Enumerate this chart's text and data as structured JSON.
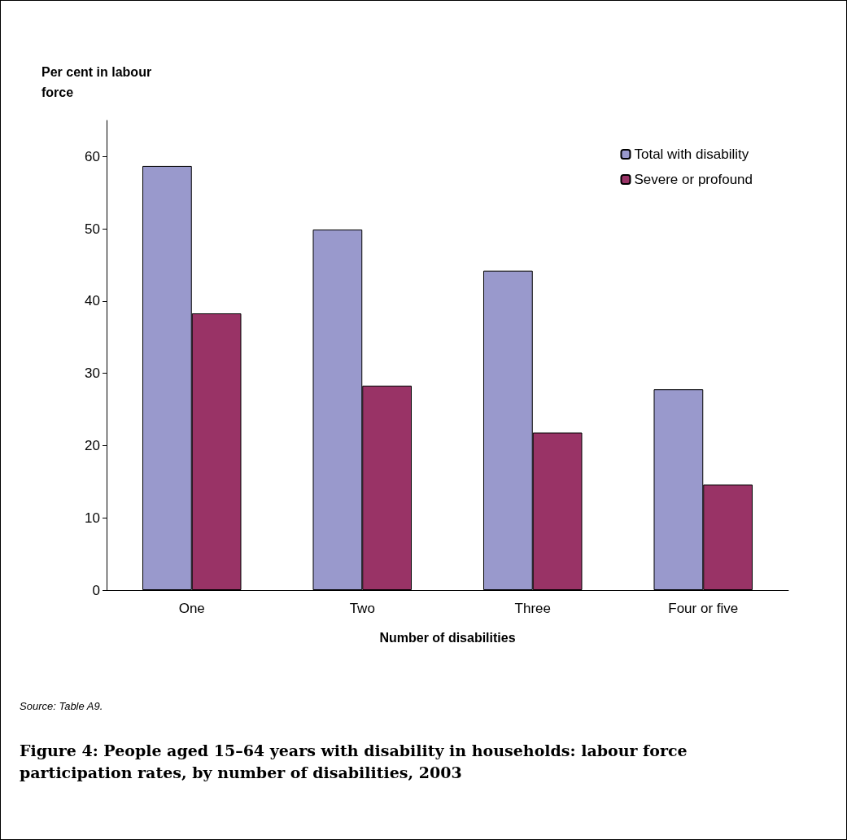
{
  "chart_data": {
    "type": "bar",
    "title": "Figure 4: People aged 15–64 years with disability in households: labour force participation rates, by number of disabilities, 2003",
    "ylabel": "Per cent in labour force",
    "xlabel": "Number of disabilities",
    "annotations": [
      "Source: Table A9."
    ],
    "categories": [
      "One",
      "Two",
      "Three",
      "Four or five"
    ],
    "series": [
      {
        "name": "Total with disability",
        "color": "#9999cc",
        "values": [
          58.7,
          49.9,
          44.2,
          27.8
        ]
      },
      {
        "name": "Severe or profound",
        "color": "#993366",
        "values": [
          38.3,
          28.3,
          21.8,
          14.6
        ]
      }
    ],
    "ylim": [
      0,
      65
    ],
    "yticks": [
      0,
      10,
      20,
      30,
      40,
      50,
      60
    ],
    "grid": false,
    "legend": "top right"
  }
}
